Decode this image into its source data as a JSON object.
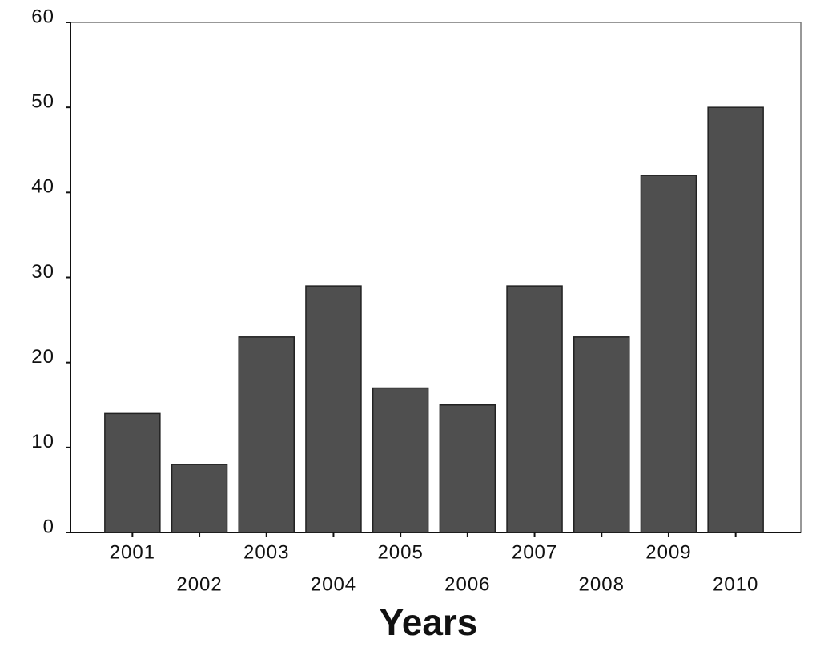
{
  "chart_data": {
    "type": "bar",
    "x_label": "Years",
    "categories": [
      "2001",
      "2002",
      "2003",
      "2004",
      "2005",
      "2006",
      "2007",
      "2008",
      "2009",
      "2010"
    ],
    "values": [
      14,
      8,
      23,
      29,
      17,
      15,
      29,
      23,
      42,
      50
    ],
    "color": "#4f4f4f",
    "ylim": [
      0,
      60
    ],
    "yticks": [
      0,
      10,
      20,
      30,
      40,
      50,
      60
    ],
    "grid": false
  }
}
